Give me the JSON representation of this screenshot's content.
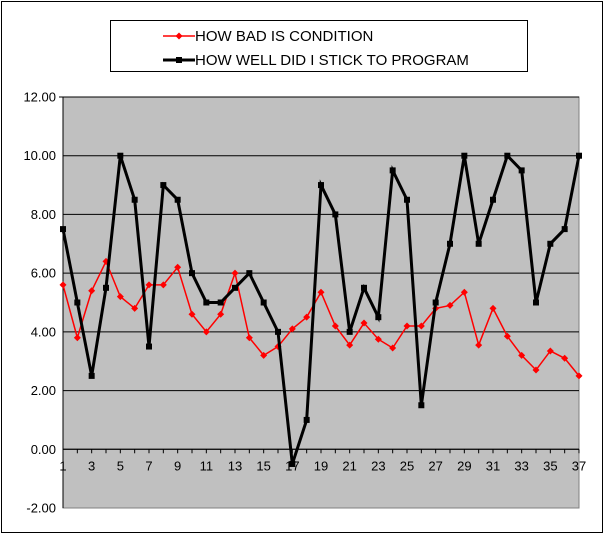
{
  "chart_data": {
    "type": "line",
    "title": "",
    "xlabel": "",
    "ylabel": "",
    "x": [
      1,
      2,
      3,
      4,
      5,
      6,
      7,
      8,
      9,
      10,
      11,
      12,
      13,
      14,
      15,
      16,
      17,
      18,
      19,
      20,
      21,
      22,
      23,
      24,
      25,
      26,
      27,
      28,
      29,
      30,
      31,
      32,
      33,
      34,
      35,
      36,
      37
    ],
    "x_tick_labels": [
      "1",
      "3",
      "5",
      "7",
      "9",
      "11",
      "13",
      "15",
      "17",
      "19",
      "21",
      "23",
      "25",
      "27",
      "29",
      "31",
      "33",
      "35",
      "37"
    ],
    "ylim": [
      -2,
      12
    ],
    "y_tick_labels": [
      "12.00",
      "10.00",
      "8.00",
      "6.00",
      "4.00",
      "2.00",
      "0.00",
      "-2.00"
    ],
    "grid": true,
    "legend_position": "top",
    "plot_background": "#c0c0c0",
    "series": [
      {
        "name": "HOW BAD IS CONDITION",
        "color": "#ff0000",
        "marker": "diamond",
        "values": [
          5.6,
          3.8,
          5.4,
          6.4,
          5.2,
          4.8,
          5.6,
          5.6,
          6.2,
          4.6,
          4.0,
          4.6,
          6.0,
          3.8,
          3.2,
          3.5,
          4.1,
          4.5,
          5.35,
          4.2,
          3.55,
          4.3,
          3.75,
          3.45,
          4.2,
          4.2,
          4.8,
          4.9,
          5.35,
          3.55,
          4.8,
          3.85,
          3.2,
          2.7,
          3.35,
          3.1,
          2.5
        ]
      },
      {
        "name": "HOW WELL DID I STICK TO PROGRAM",
        "color": "#000000",
        "marker": "square",
        "values": [
          7.5,
          5.0,
          2.5,
          5.5,
          10.0,
          8.5,
          3.5,
          9.0,
          8.5,
          6.0,
          5.0,
          5.0,
          5.5,
          6.0,
          5.0,
          4.0,
          -0.5,
          1.0,
          9.0,
          8.0,
          4.0,
          5.5,
          4.5,
          9.5,
          8.5,
          1.5,
          5.0,
          7.0,
          10.0,
          7.0,
          8.5,
          10.0,
          9.5,
          5.0,
          7.0,
          7.5,
          10.0
        ]
      }
    ]
  }
}
